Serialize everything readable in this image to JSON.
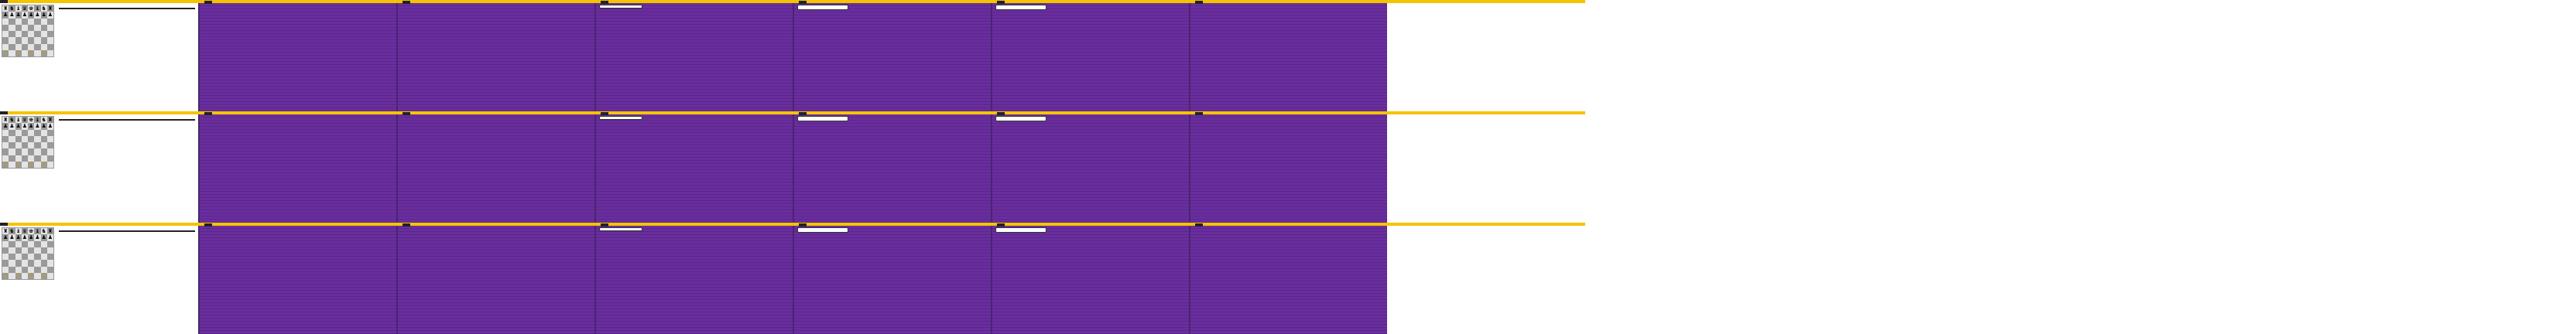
{
  "rows": [
    {
      "caption": "",
      "player": "",
      "elo": "",
      "side_title": "",
      "side_text": ""
    },
    {
      "caption": "",
      "player": "",
      "elo": "",
      "side_title": "",
      "side_text": ""
    },
    {
      "caption": "",
      "player": "",
      "elo": "",
      "side_title": "",
      "side_text": ""
    }
  ],
  "colors": {
    "topbar": "#f5c400",
    "panel": "#6a2e9c",
    "panel_border": "#4a2470",
    "board_light": "#e4e4e4",
    "board_dark": "#9a9a9a"
  },
  "board": {
    "pieces": [
      [
        "♜",
        "♞",
        "♝",
        "♛",
        "♚",
        "♝",
        "♞",
        "♜"
      ],
      [
        "♟",
        "♟",
        "♟",
        "♟",
        "♟",
        "♟",
        "♟",
        "♟"
      ],
      [
        "",
        "",
        "",
        "",
        "",
        "",
        "",
        ""
      ],
      [
        "",
        "",
        "",
        "",
        "",
        "",
        "",
        ""
      ],
      [
        "",
        "",
        "",
        "",
        "",
        "",
        "",
        ""
      ],
      [
        "",
        "",
        "",
        "",
        "",
        "",
        "",
        ""
      ],
      [
        "",
        "",
        "",
        "",
        "",
        "",
        "",
        ""
      ],
      [
        "♙",
        "",
        "♙",
        "",
        "♙",
        "",
        "♙",
        ""
      ]
    ]
  }
}
